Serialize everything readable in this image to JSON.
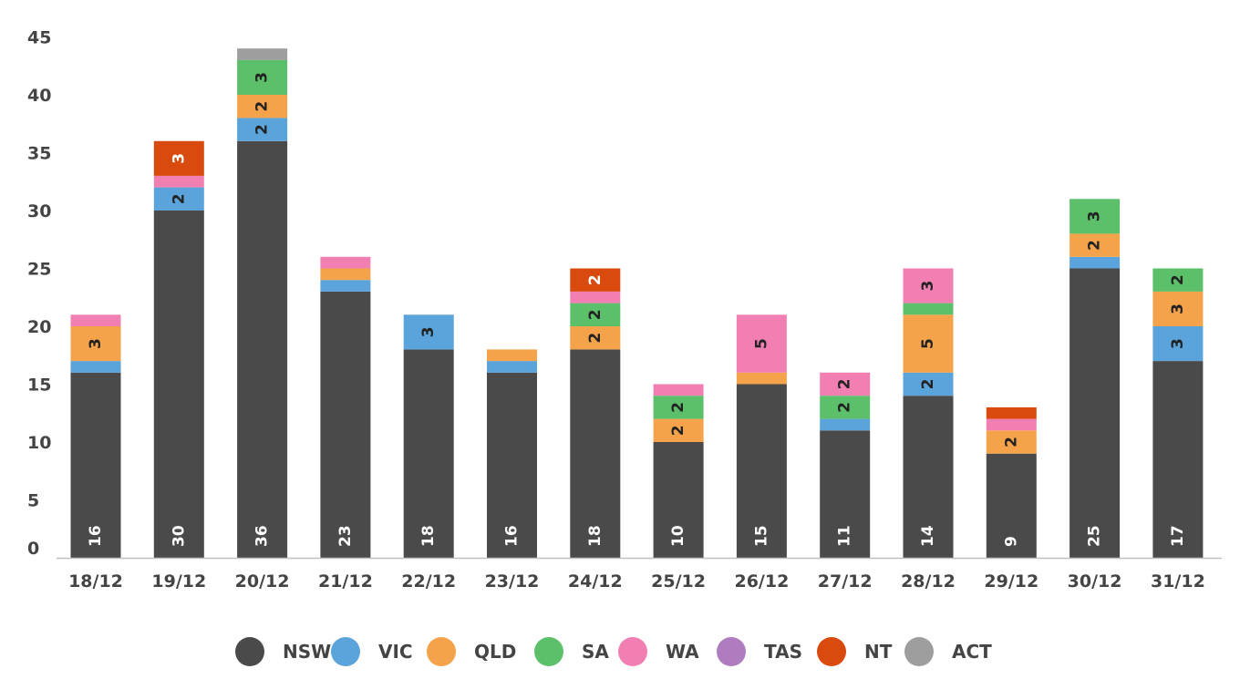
{
  "chart_data": {
    "type": "bar",
    "stacked": true,
    "categories": [
      "18/12",
      "19/12",
      "20/12",
      "21/12",
      "22/12",
      "23/12",
      "24/12",
      "25/12",
      "26/12",
      "27/12",
      "28/12",
      "29/12",
      "30/12",
      "31/12"
    ],
    "series": [
      {
        "name": "NSW",
        "color": "#4a4a4a",
        "values": [
          16,
          30,
          36,
          23,
          18,
          16,
          18,
          10,
          15,
          11,
          14,
          9,
          25,
          17
        ]
      },
      {
        "name": "VIC",
        "color": "#5ba3db",
        "values": [
          1,
          2,
          2,
          1,
          3,
          1,
          0,
          0,
          0,
          1,
          2,
          0,
          1,
          3
        ]
      },
      {
        "name": "QLD",
        "color": "#f5a34a",
        "values": [
          3,
          0,
          2,
          1,
          0,
          1,
          2,
          2,
          1,
          0,
          5,
          2,
          2,
          3
        ]
      },
      {
        "name": "SA",
        "color": "#5cbf6a",
        "values": [
          0,
          0,
          3,
          0,
          0,
          0,
          2,
          2,
          0,
          2,
          1,
          0,
          3,
          2
        ]
      },
      {
        "name": "WA",
        "color": "#f27fb2",
        "values": [
          1,
          1,
          0,
          1,
          0,
          0,
          1,
          1,
          5,
          2,
          3,
          1,
          0,
          0
        ]
      },
      {
        "name": "TAS",
        "color": "#b07cc0",
        "values": [
          0,
          0,
          0,
          0,
          0,
          0,
          0,
          0,
          0,
          0,
          0,
          0,
          0,
          0
        ]
      },
      {
        "name": "NT",
        "color": "#d94a0f",
        "values": [
          0,
          3,
          0,
          0,
          0,
          0,
          2,
          0,
          0,
          0,
          0,
          1,
          0,
          0
        ]
      },
      {
        "name": "ACT",
        "color": "#9e9e9e",
        "values": [
          0,
          0,
          1,
          0,
          0,
          0,
          0,
          0,
          0,
          0,
          0,
          0,
          0,
          0
        ]
      }
    ],
    "ylim": [
      0,
      45
    ],
    "yticks": [
      0,
      5,
      10,
      15,
      20,
      25,
      30,
      35,
      40,
      45
    ],
    "grid": false,
    "legend_position": "bottom",
    "title": "",
    "xlabel": "",
    "ylabel": ""
  }
}
